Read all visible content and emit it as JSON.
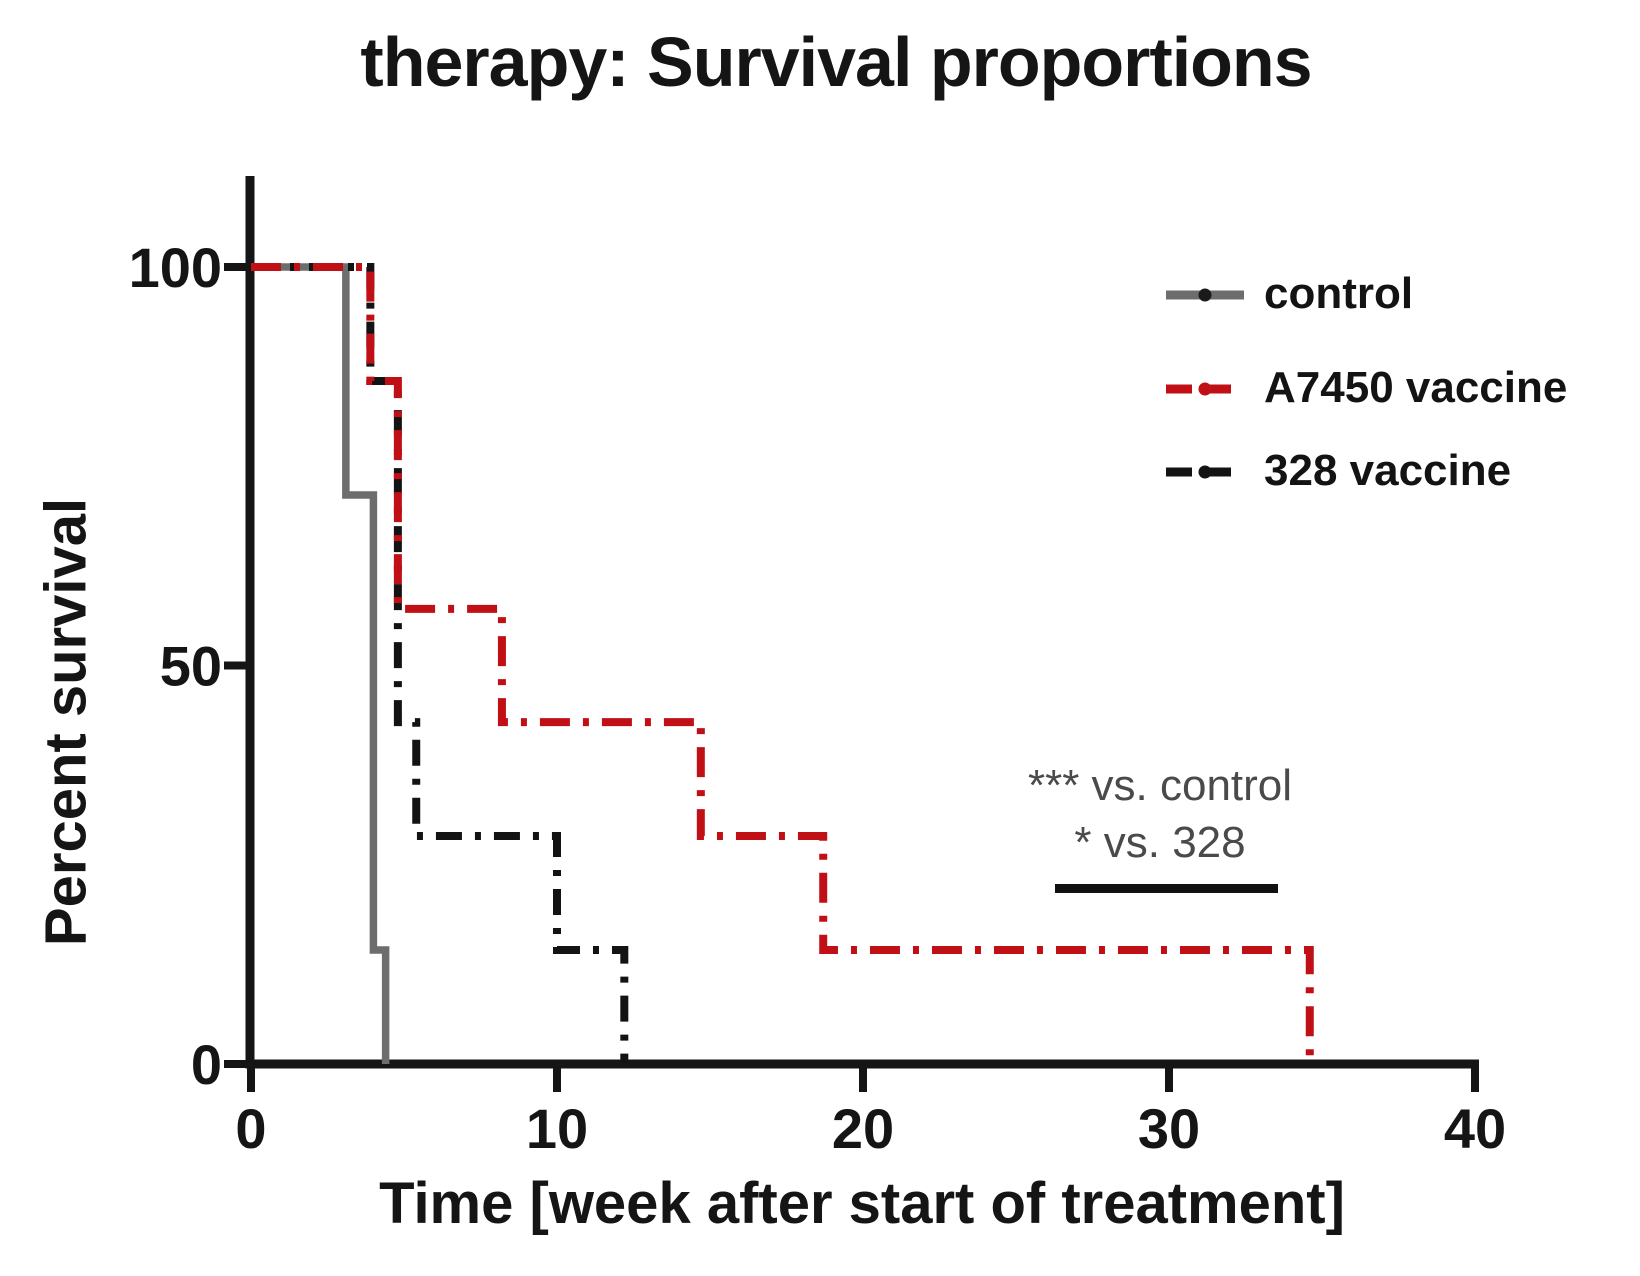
{
  "chart": {
    "title": "therapy: Survival proportions",
    "xlabel": "Time [week after start of treatment]",
    "ylabel": "Percent survival"
  },
  "annotation": {
    "line1": "*** vs. control",
    "line2": "* vs. 328"
  },
  "colors": {
    "axis": "#151515",
    "control_gray": "#6d6d6d",
    "vaccine_red": "#c01015",
    "vaccine_black": "#131313",
    "annotation_text": "#4a4a4a",
    "significance_bar": "#111111"
  },
  "chart_data": {
    "type": "line",
    "subtype": "kaplan-meier-step",
    "title": "therapy: Survival proportions",
    "xlabel": "Time [week after start of treatment]",
    "ylabel": "Percent survival",
    "xlim": [
      0,
      40
    ],
    "ylim": [
      0,
      100
    ],
    "xticks": [
      0,
      10,
      20,
      30,
      40
    ],
    "yticks": [
      0,
      50,
      100
    ],
    "grid": false,
    "legend_position": "upper-right",
    "series": [
      {
        "name": "control",
        "color": "#6d6d6d",
        "dot_color": "#1a1a1a",
        "dash": "solid",
        "points": [
          [
            0,
            100
          ],
          [
            3.1,
            100
          ],
          [
            3.1,
            71.4
          ],
          [
            4,
            71.4
          ],
          [
            4,
            14.3
          ],
          [
            4.4,
            14.3
          ],
          [
            4.4,
            0
          ]
        ]
      },
      {
        "name": "A7450 vaccine",
        "color": "#c01015",
        "dot_color": "#c01015",
        "dash": "dashdot",
        "points": [
          [
            0,
            100
          ],
          [
            3.9,
            100
          ],
          [
            3.9,
            85.7
          ],
          [
            4.8,
            85.7
          ],
          [
            4.8,
            57.1
          ],
          [
            8.2,
            57.1
          ],
          [
            8.2,
            42.9
          ],
          [
            14.7,
            42.9
          ],
          [
            14.7,
            28.6
          ],
          [
            18.7,
            28.6
          ],
          [
            18.7,
            14.3
          ],
          [
            34.6,
            14.3
          ],
          [
            34.6,
            0
          ]
        ]
      },
      {
        "name": "328 vaccine",
        "color": "#131313",
        "dot_color": "#131313",
        "dash": "dashdot",
        "points": [
          [
            0,
            100
          ],
          [
            3.9,
            100
          ],
          [
            3.9,
            85.7
          ],
          [
            4.8,
            85.7
          ],
          [
            4.8,
            42.9
          ],
          [
            5.4,
            42.9
          ],
          [
            5.4,
            28.6
          ],
          [
            10,
            28.6
          ],
          [
            10,
            14.3
          ],
          [
            12.2,
            14.3
          ],
          [
            12.2,
            0
          ]
        ]
      }
    ],
    "annotations": [
      "*** vs. control",
      "* vs. 328"
    ]
  }
}
